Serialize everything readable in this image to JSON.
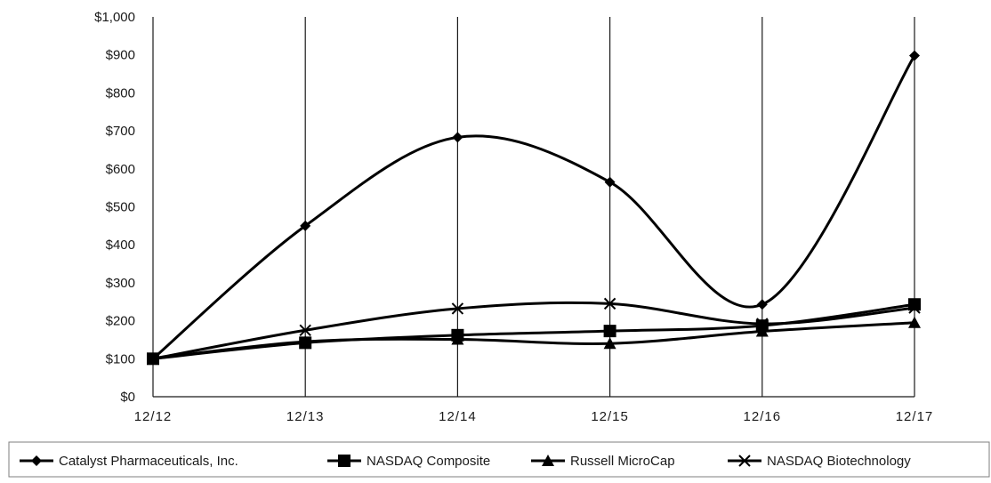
{
  "chart_data": {
    "type": "line",
    "title": "",
    "xlabel": "",
    "ylabel": "",
    "categories": [
      "12/12",
      "12/13",
      "12/14",
      "12/15",
      "12/16",
      "12/17"
    ],
    "ylim": [
      0,
      1000
    ],
    "y_ticks": [
      0,
      100,
      200,
      300,
      400,
      500,
      600,
      700,
      800,
      900,
      1000
    ],
    "y_tick_labels": [
      "$0",
      "$100",
      "$200",
      "$300",
      "$400",
      "$500",
      "$600",
      "$700",
      "$800",
      "$900",
      "$1,000"
    ],
    "grid": "vertical lines at each category",
    "legend_position": "bottom",
    "series": [
      {
        "name": "Catalyst Pharmaceuticals, Inc.",
        "marker": "diamond",
        "color": "#000000",
        "values": [
          100,
          450,
          683,
          565,
          243,
          898
        ]
      },
      {
        "name": "NASDAQ Composite",
        "marker": "square",
        "color": "#000000",
        "values": [
          100,
          142,
          162,
          173,
          187,
          243
        ]
      },
      {
        "name": "Russell MicroCap",
        "marker": "triangle",
        "color": "#000000",
        "values": [
          100,
          145,
          151,
          140,
          172,
          195
        ]
      },
      {
        "name": "NASDAQ Biotechnology",
        "marker": "x",
        "color": "#000000",
        "values": [
          100,
          175,
          232,
          245,
          192,
          234
        ]
      }
    ]
  }
}
